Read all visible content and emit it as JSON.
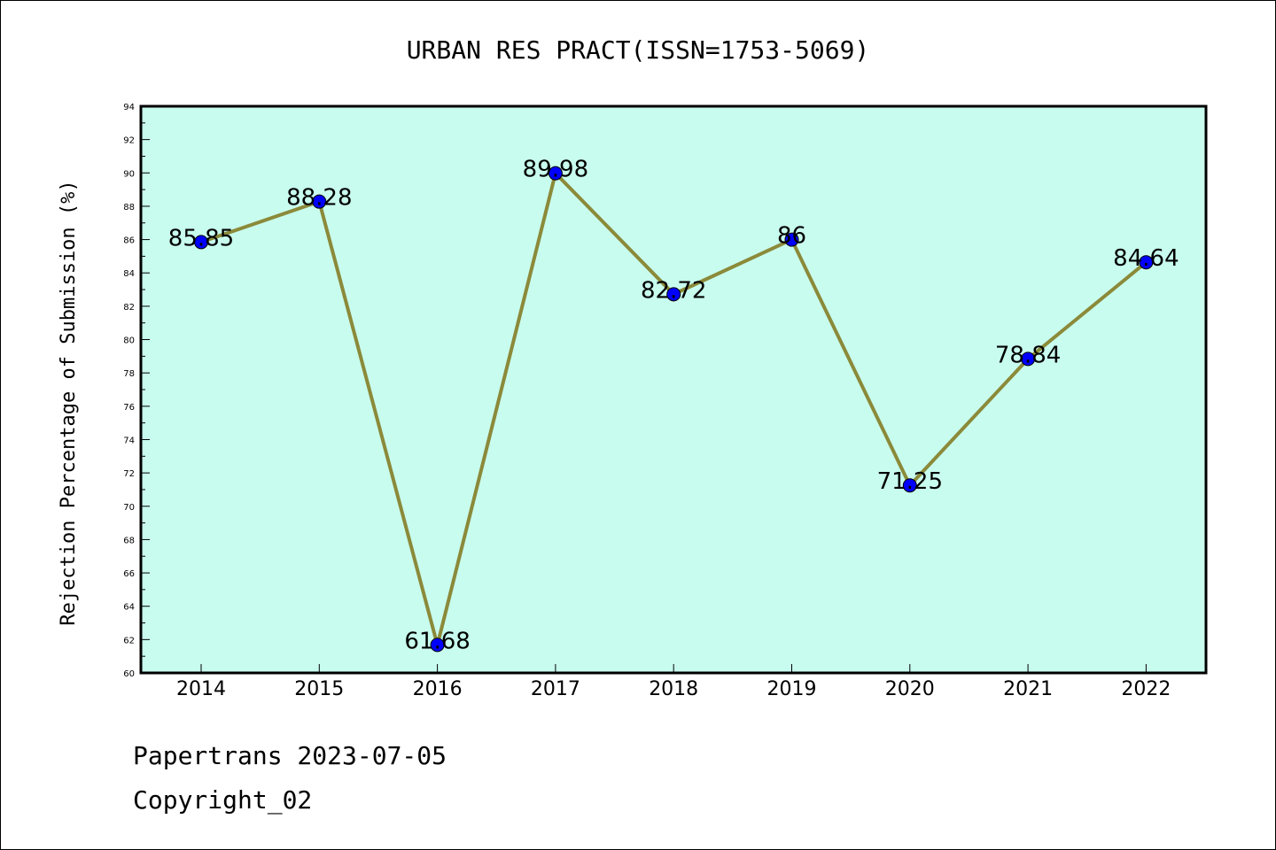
{
  "footer": {
    "line1": "Papertrans 2023-07-05",
    "line2": "Copyright_02"
  },
  "colors": {
    "plot_background": "#c8fcee",
    "line": "#8b8a3a",
    "marker": "#0000ff",
    "axis": "#000000"
  },
  "chart_data": {
    "type": "line",
    "title": "URBAN RES PRACT(ISSN=1753-5069)",
    "xlabel": "",
    "ylabel": "Rejection Percentage of Submission (%)",
    "categories": [
      "2014",
      "2015",
      "2016",
      "2017",
      "2018",
      "2019",
      "2020",
      "2021",
      "2022"
    ],
    "series": [
      {
        "values": [
          85.85,
          88.28,
          61.68,
          89.98,
          82.72,
          86,
          71.25,
          78.84,
          84.64
        ],
        "labels": [
          "85.85",
          "88.28",
          "61.68",
          "89.98",
          "82.72",
          "86",
          "71.25",
          "78.84",
          "84.64"
        ]
      }
    ],
    "ylim": [
      60,
      94
    ],
    "yticks": [
      60,
      62,
      64,
      66,
      68,
      70,
      72,
      74,
      76,
      78,
      80,
      82,
      84,
      86,
      88,
      90,
      92,
      94
    ],
    "grid": false,
    "legend": "none"
  }
}
